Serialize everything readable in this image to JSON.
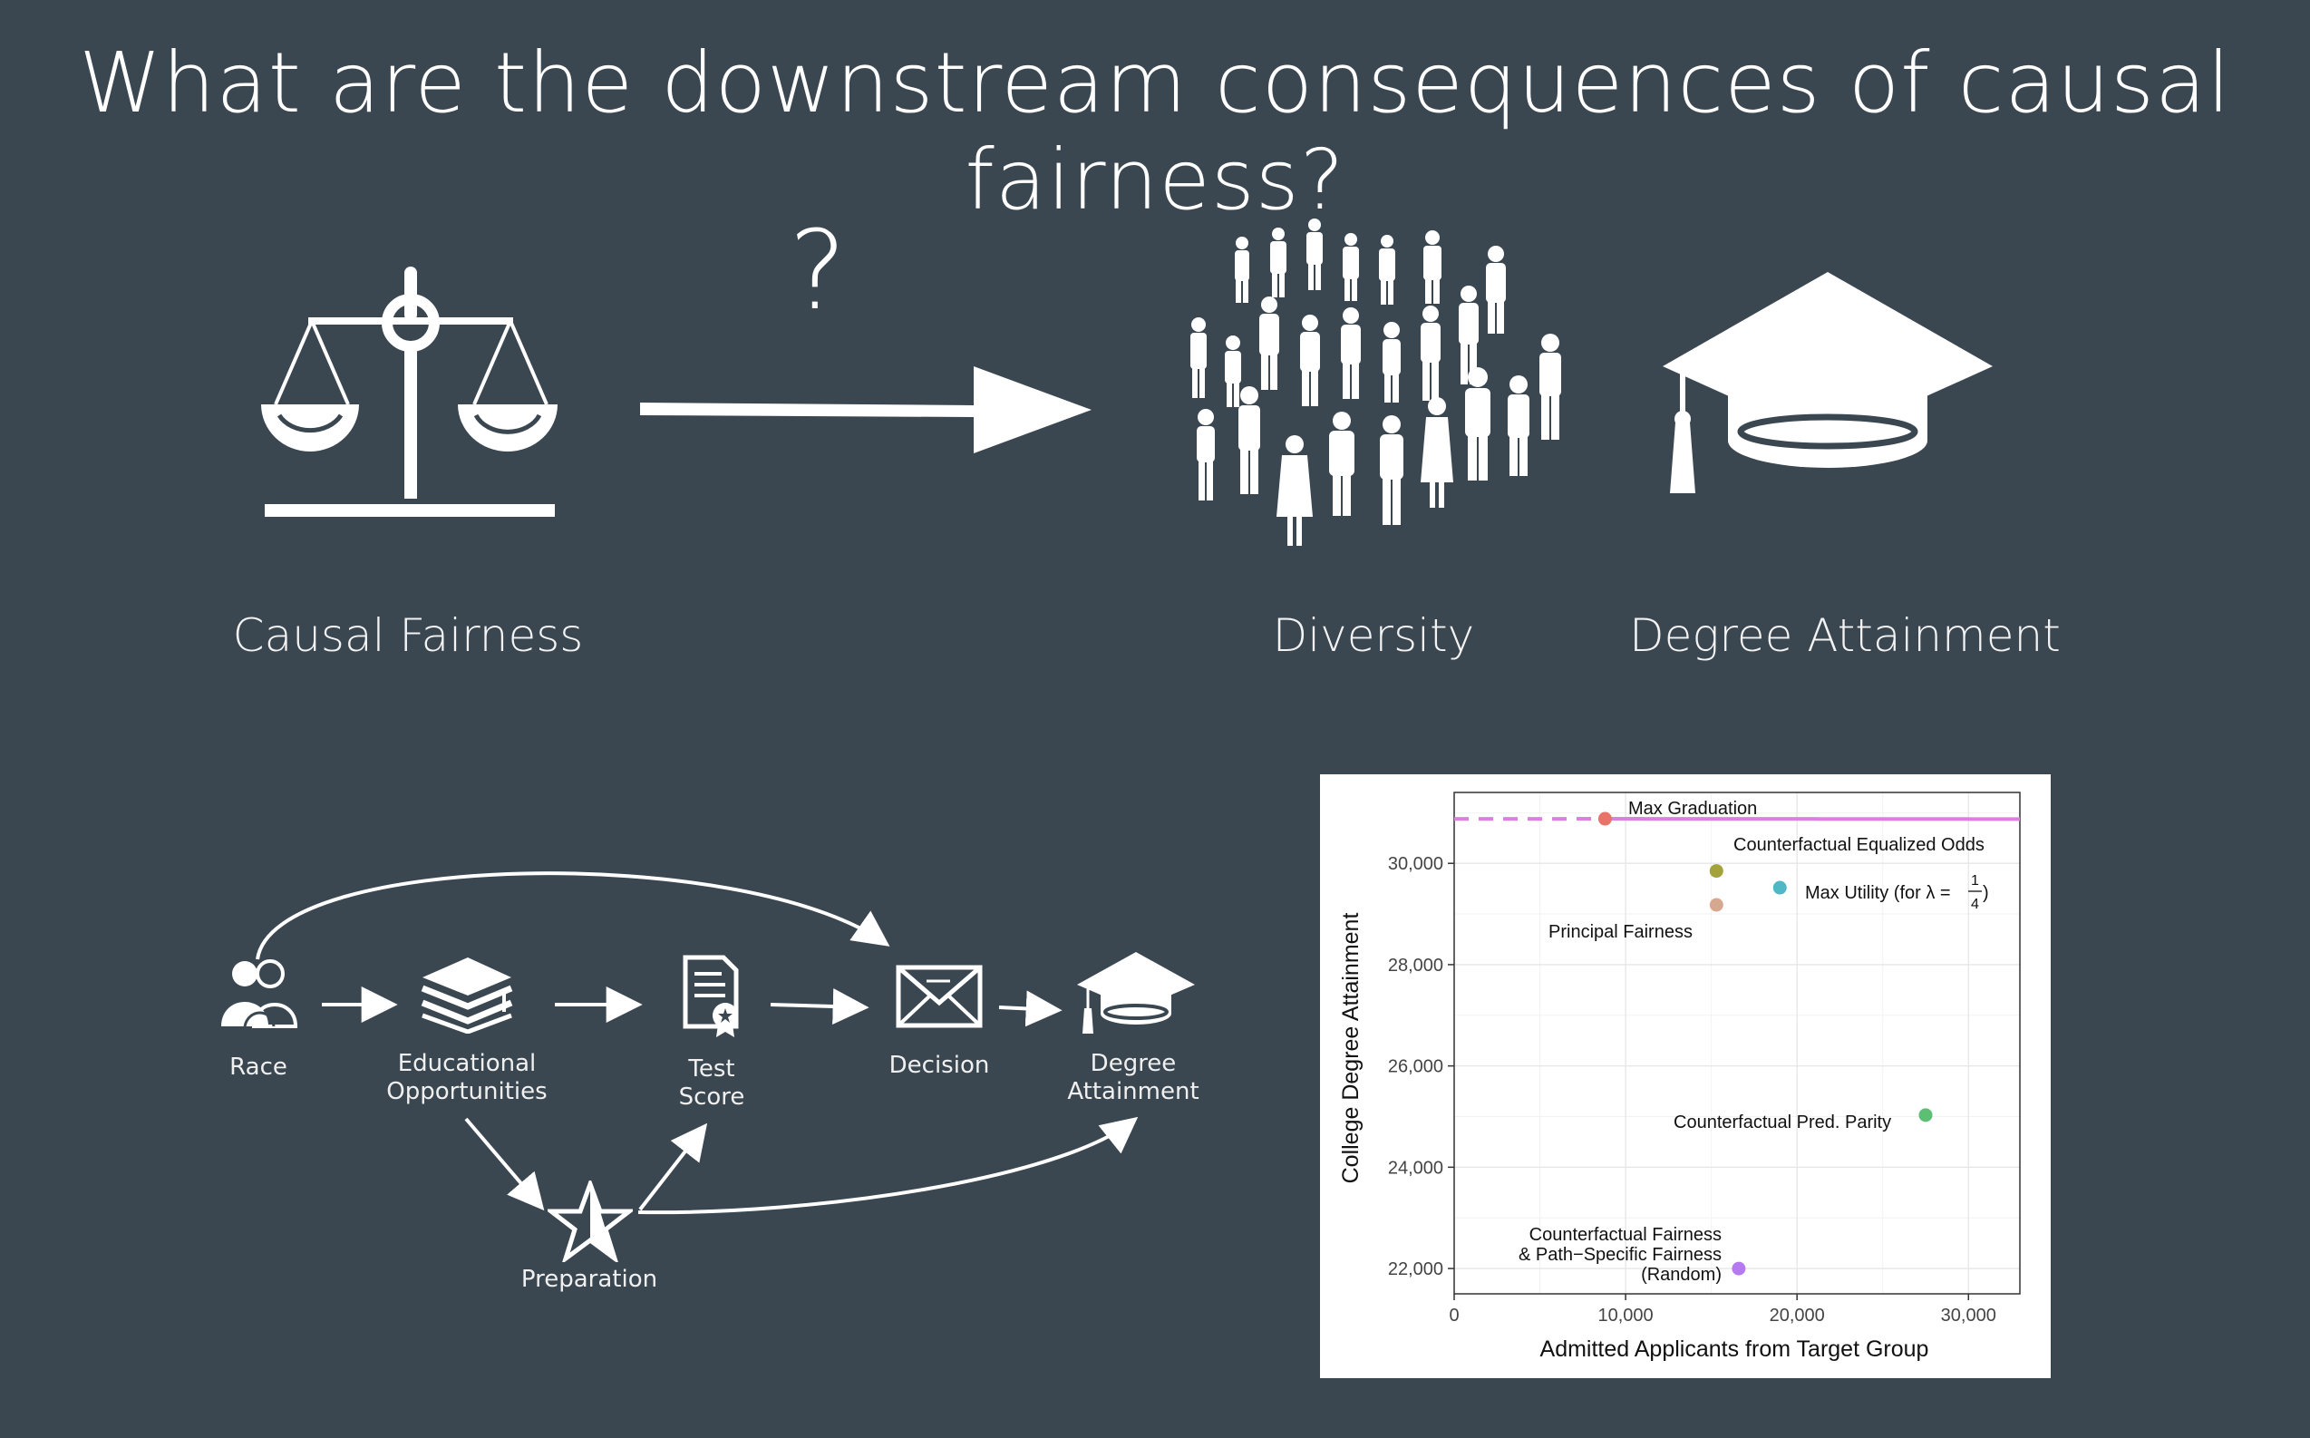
{
  "title": "What are the downstream consequences of causal fairness?",
  "top": {
    "question_mark": "?",
    "labels": {
      "causal_fairness": "Causal Fairness",
      "diversity": "Diversity",
      "degree_attainment": "Degree Attainment"
    },
    "icons": [
      "scales-icon",
      "right-arrow-icon",
      "crowd-icon",
      "graduation-cap-icon"
    ]
  },
  "dag": {
    "nodes": {
      "race": "Race",
      "educational_opportunities_1": "Educational",
      "educational_opportunities_2": "Opportunities",
      "test_score_1": "Test",
      "test_score_2": "Score",
      "decision": "Decision",
      "degree_attainment_1": "Degree",
      "degree_attainment_2": "Attainment",
      "preparation": "Preparation"
    },
    "icons": [
      "people-icon",
      "books-icon",
      "certificate-icon",
      "envelope-icon",
      "graduation-cap-icon",
      "star-icon"
    ]
  },
  "chart_data": {
    "type": "scatter",
    "xlabel": "Admitted Applicants from Target Group",
    "ylabel": "College Degree Attainment",
    "xlim": [
      0,
      33000
    ],
    "ylim": [
      21500,
      31400
    ],
    "x_ticks": [
      0,
      10000,
      20000,
      30000
    ],
    "x_tick_labels": [
      "0",
      "10,000",
      "20,000",
      "30,000"
    ],
    "y_ticks": [
      22000,
      24000,
      26000,
      28000,
      30000
    ],
    "y_tick_labels": [
      "22,000",
      "24,000",
      "26,000",
      "28,000",
      "30,000"
    ],
    "grid": true,
    "frontier": {
      "color": "#dd7fe0",
      "dashed_segment_x": [
        0,
        8800
      ],
      "solid_segment_x": [
        8800,
        33000
      ]
    },
    "points": [
      {
        "label": "Max Graduation",
        "x": 8800,
        "y": 30880,
        "color": "#e8736b"
      },
      {
        "label": "Counterfactual Equalized Odds",
        "x": 15300,
        "y": 29850,
        "color": "#a3a23b"
      },
      {
        "label": "Principal Fairness",
        "x": 15300,
        "y": 29180,
        "color": "#d7a890"
      },
      {
        "label": "Max Utility (for λ = 1/4)",
        "x": 19000,
        "y": 29520,
        "color": "#4eb8c4"
      },
      {
        "label": "Counterfactual Pred. Parity",
        "x": 27500,
        "y": 25030,
        "color": "#5dbf73"
      },
      {
        "label": "Counterfactual Fairness & Path−Specific Fairness (Random)",
        "x": 16600,
        "y": 22000,
        "color": "#b57af0"
      }
    ],
    "annotations": {
      "max_graduation": "Max Graduation",
      "cf_equalized_odds": "Counterfactual Equalized Odds",
      "max_utility_text": "Max Utility (for λ =",
      "max_utility_num": "1",
      "max_utility_den": "4",
      "max_utility_close": ")",
      "principal_fairness": "Principal Fairness",
      "cf_pred_parity": "Counterfactual Pred. Parity",
      "cf_fairness_line1": "Counterfactual Fairness",
      "cf_fairness_line2": "& Path−Specific Fairness",
      "cf_fairness_line3": "(Random)"
    }
  }
}
